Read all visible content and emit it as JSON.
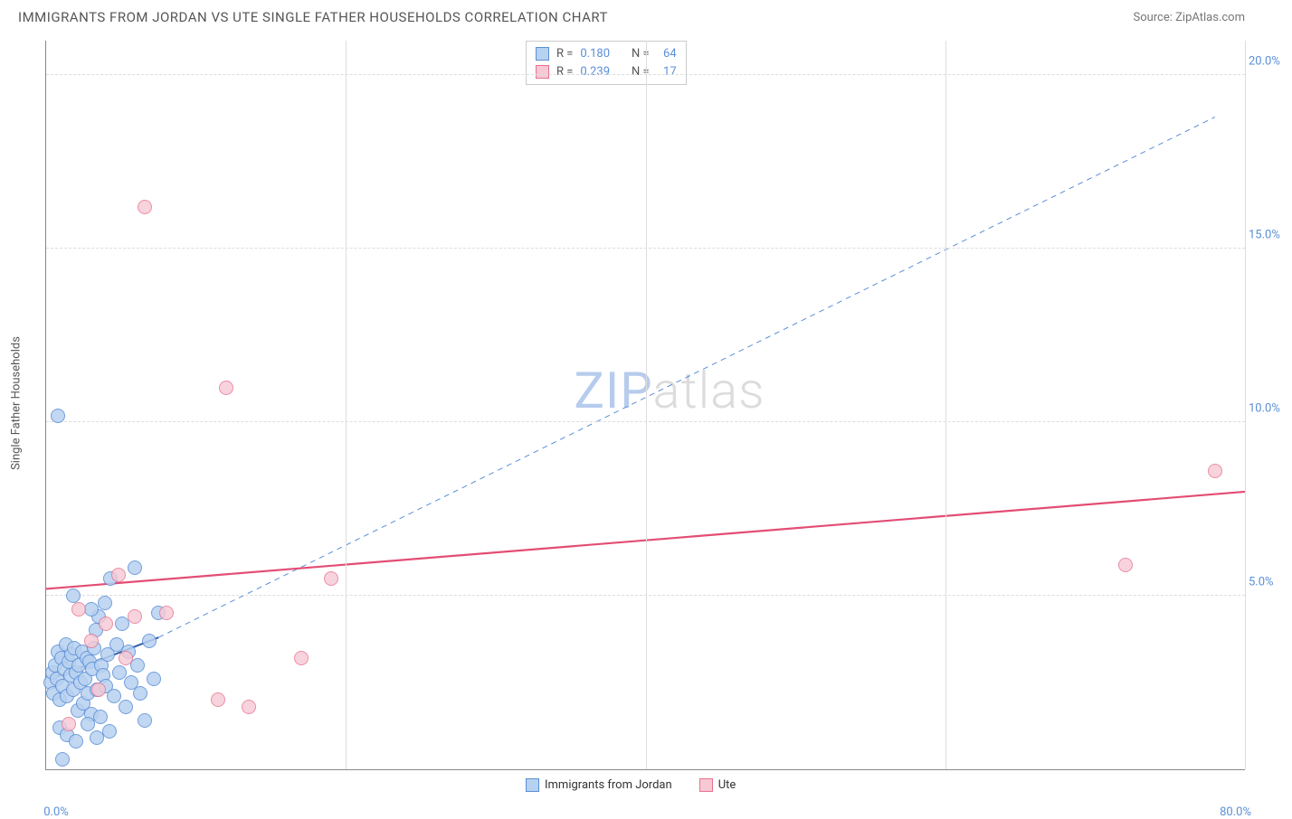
{
  "title": "IMMIGRANTS FROM JORDAN VS UTE SINGLE FATHER HOUSEHOLDS CORRELATION CHART",
  "source": "Source: ZipAtlas.com",
  "y_axis_label": "Single Father Households",
  "watermark": {
    "bold": "ZIP",
    "light": "atlas",
    "bold_color": "#b7cced",
    "light_color": "#dcdcdc"
  },
  "chart": {
    "type": "scatter",
    "xlim": [
      0,
      80
    ],
    "ylim": [
      0,
      21
    ],
    "background_color": "#ffffff",
    "grid_color": "#dddddd",
    "y_ticks": [
      {
        "v": 5.0,
        "label": "5.0%"
      },
      {
        "v": 10.0,
        "label": "10.0%"
      },
      {
        "v": 15.0,
        "label": "15.0%"
      },
      {
        "v": 20.0,
        "label": "20.0%"
      }
    ],
    "x_ticks_grid": [
      20,
      40,
      60,
      80
    ],
    "x_ticks_labels": [
      {
        "v": 0,
        "label": "0.0%"
      },
      {
        "v": 80,
        "label": "80.0%"
      }
    ],
    "tick_label_color": "#5b8fd6",
    "tick_label_fontsize": 13,
    "point_radius": 8,
    "point_border_width": 1.2,
    "series": [
      {
        "name": "Immigrants from Jordan",
        "key": "jordan",
        "fill": "#b7d1f0",
        "stroke": "#5b8fd6",
        "fill_opacity": 0.55,
        "r_value": "0.180",
        "n_value": "64",
        "trend": {
          "x1": 0.3,
          "y1": 2.6,
          "x2": 7.5,
          "y2": 3.8,
          "color": "#2f5da8",
          "width": 2.0,
          "dash": "none"
        },
        "trend_ext": {
          "x1": 7.5,
          "y1": 3.8,
          "x2": 78,
          "y2": 18.8,
          "color": "#5b8fd6",
          "width": 1.0,
          "dash": "6 5"
        },
        "points": [
          [
            0.3,
            2.5
          ],
          [
            0.4,
            2.8
          ],
          [
            0.5,
            2.2
          ],
          [
            0.6,
            3.0
          ],
          [
            0.7,
            2.6
          ],
          [
            0.8,
            3.4
          ],
          [
            0.9,
            2.0
          ],
          [
            1.0,
            3.2
          ],
          [
            1.1,
            2.4
          ],
          [
            1.2,
            2.9
          ],
          [
            1.3,
            3.6
          ],
          [
            1.4,
            2.1
          ],
          [
            1.5,
            3.1
          ],
          [
            1.6,
            2.7
          ],
          [
            1.7,
            3.3
          ],
          [
            1.8,
            2.3
          ],
          [
            1.9,
            3.5
          ],
          [
            2.0,
            2.8
          ],
          [
            2.1,
            1.7
          ],
          [
            2.2,
            3.0
          ],
          [
            2.3,
            2.5
          ],
          [
            2.4,
            3.4
          ],
          [
            2.5,
            1.9
          ],
          [
            2.6,
            2.6
          ],
          [
            2.7,
            3.2
          ],
          [
            2.8,
            2.2
          ],
          [
            2.9,
            3.1
          ],
          [
            3.0,
            1.6
          ],
          [
            3.1,
            2.9
          ],
          [
            3.2,
            3.5
          ],
          [
            3.3,
            4.0
          ],
          [
            3.4,
            2.3
          ],
          [
            3.5,
            4.4
          ],
          [
            3.6,
            1.5
          ],
          [
            3.7,
            3.0
          ],
          [
            3.8,
            2.7
          ],
          [
            3.9,
            4.8
          ],
          [
            4.0,
            2.4
          ],
          [
            4.1,
            3.3
          ],
          [
            4.3,
            5.5
          ],
          [
            4.5,
            2.1
          ],
          [
            4.7,
            3.6
          ],
          [
            4.9,
            2.8
          ],
          [
            5.1,
            4.2
          ],
          [
            5.3,
            1.8
          ],
          [
            5.5,
            3.4
          ],
          [
            5.7,
            2.5
          ],
          [
            5.9,
            5.8
          ],
          [
            6.1,
            3.0
          ],
          [
            6.3,
            2.2
          ],
          [
            6.6,
            1.4
          ],
          [
            6.9,
            3.7
          ],
          [
            7.2,
            2.6
          ],
          [
            7.5,
            4.5
          ],
          [
            0.9,
            1.2
          ],
          [
            1.4,
            1.0
          ],
          [
            2.0,
            0.8
          ],
          [
            2.8,
            1.3
          ],
          [
            3.4,
            0.9
          ],
          [
            4.2,
            1.1
          ],
          [
            1.8,
            5.0
          ],
          [
            3.0,
            4.6
          ],
          [
            0.8,
            10.2
          ],
          [
            1.1,
            0.3
          ]
        ]
      },
      {
        "name": "Ute",
        "key": "ute",
        "fill": "#f6c9d5",
        "stroke": "#e8718f",
        "fill_opacity": 0.5,
        "r_value": "0.239",
        "n_value": "17",
        "trend": {
          "x1": 0,
          "y1": 5.2,
          "x2": 80,
          "y2": 8.0,
          "color": "#e34d74",
          "width": 2.2,
          "dash": "none"
        },
        "points": [
          [
            2.2,
            4.6
          ],
          [
            3.0,
            3.7
          ],
          [
            3.5,
            2.3
          ],
          [
            4.0,
            4.2
          ],
          [
            4.8,
            5.6
          ],
          [
            5.3,
            3.2
          ],
          [
            5.9,
            4.4
          ],
          [
            6.6,
            16.2
          ],
          [
            8.0,
            4.5
          ],
          [
            11.5,
            2.0
          ],
          [
            13.5,
            1.8
          ],
          [
            12.0,
            11.0
          ],
          [
            17.0,
            3.2
          ],
          [
            19.0,
            5.5
          ],
          [
            72.0,
            5.9
          ],
          [
            78.0,
            8.6
          ],
          [
            1.5,
            1.3
          ]
        ]
      }
    ]
  },
  "legend_bottom": [
    {
      "label": "Immigrants from Jordan",
      "fill": "#b7d1f0",
      "stroke": "#5b8fd6"
    },
    {
      "label": "Ute",
      "fill": "#f6c9d5",
      "stroke": "#e8718f"
    }
  ]
}
